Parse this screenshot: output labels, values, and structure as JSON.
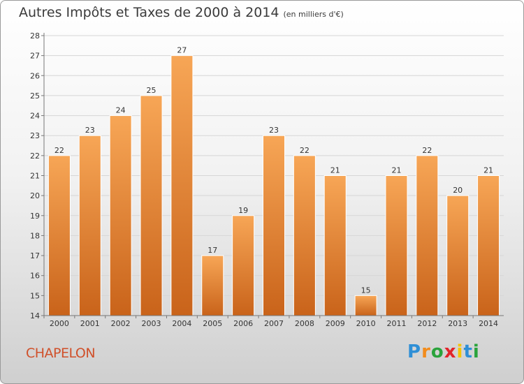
{
  "title": "Autres Impôts et Taxes de 2000 à 2014",
  "title_unit": "(en milliers d'€)",
  "commune": "CHAPELON",
  "logo": {
    "letters": [
      "P",
      "r",
      "o",
      "x",
      "i",
      "t",
      "i"
    ],
    "colors": [
      "#2f8fd6",
      "#f28c1c",
      "#2aa33c",
      "#e2242a",
      "#f5c400",
      "#2f8fd6",
      "#2aa33c"
    ]
  },
  "colors": {
    "bar_top": "#f7a656",
    "bar_bottom": "#c9631a",
    "title": "#3a3a3a",
    "commune": "#d0502a"
  },
  "chart_data": {
    "type": "bar",
    "title": "Autres Impôts et Taxes de 2000 à 2014",
    "subtitle": "(en milliers d'€)",
    "categories": [
      "2000",
      "2001",
      "2002",
      "2003",
      "2004",
      "2005",
      "2006",
      "2007",
      "2008",
      "2009",
      "2010",
      "2011",
      "2012",
      "2013",
      "2014"
    ],
    "values": [
      22,
      23,
      24,
      25,
      27,
      17,
      19,
      23,
      22,
      21,
      15,
      21,
      22,
      20,
      21
    ],
    "ylim": [
      14,
      28
    ],
    "yticks": [
      14,
      15,
      16,
      17,
      18,
      19,
      20,
      21,
      22,
      23,
      24,
      25,
      26,
      27,
      28
    ],
    "grid": true,
    "legend": "none",
    "xlabel": "",
    "ylabel": ""
  }
}
